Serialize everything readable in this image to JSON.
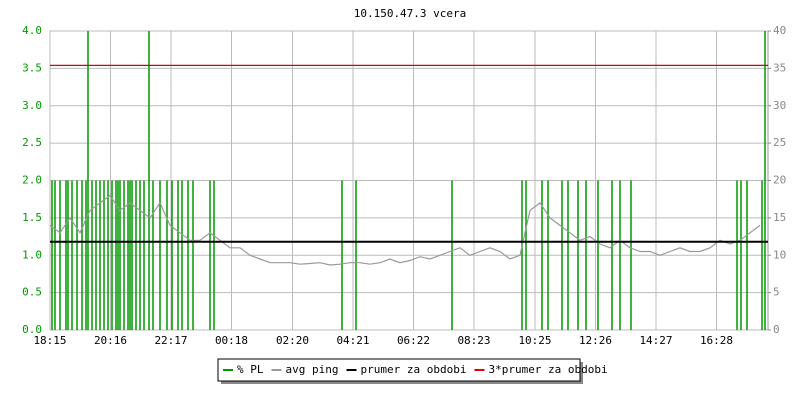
{
  "chart_data": {
    "type": "line",
    "title": "10.150.47.3 vcera",
    "xlim": [
      0,
      1436
    ],
    "xticks": [
      {
        "value": 0,
        "label": "18:15"
      },
      {
        "value": 121,
        "label": "20:16"
      },
      {
        "value": 242,
        "label": "22:17"
      },
      {
        "value": 363,
        "label": "00:18"
      },
      {
        "value": 485,
        "label": "02:20"
      },
      {
        "value": 606,
        "label": "04:21"
      },
      {
        "value": 727,
        "label": "06:22"
      },
      {
        "value": 848,
        "label": "08:23"
      },
      {
        "value": 970,
        "label": "10:25"
      },
      {
        "value": 1091,
        "label": "12:26"
      },
      {
        "value": 1212,
        "label": "14:27"
      },
      {
        "value": 1333,
        "label": "16:28"
      }
    ],
    "ylim": [
      0,
      4
    ],
    "yticks": [
      {
        "value": 0,
        "label": "0.0"
      },
      {
        "value": 0.5,
        "label": "0.5"
      },
      {
        "value": 1,
        "label": "1.0"
      },
      {
        "value": 1.5,
        "label": "1.5"
      },
      {
        "value": 2,
        "label": "2.0"
      },
      {
        "value": 2.5,
        "label": "2.5"
      },
      {
        "value": 3,
        "label": "3.0"
      },
      {
        "value": 3.5,
        "label": "3.5"
      },
      {
        "value": 4,
        "label": "4.0"
      }
    ],
    "y2lim": [
      0,
      40
    ],
    "y2ticks": [
      0,
      5,
      10,
      15,
      20,
      25,
      30,
      35,
      40
    ],
    "grid": true,
    "series": [
      {
        "name": "% PL",
        "color": "#009900",
        "style": "spikes",
        "x": [
          4,
          10,
          20,
          32,
          36,
          44,
          54,
          64,
          72,
          76,
          84,
          92,
          100,
          108,
          116,
          124,
          132,
          136,
          140,
          148,
          156,
          160,
          164,
          172,
          180,
          188,
          198,
          206,
          220,
          234,
          244,
          256,
          264,
          276,
          286,
          320,
          328,
          584,
          612,
          804,
          944,
          952,
          984,
          996,
          1024,
          1036,
          1056,
          1072,
          1096,
          1124,
          1140,
          1162,
          1374,
          1382,
          1394,
          1424,
          1430
        ],
        "values": [
          2,
          2,
          2,
          2,
          2,
          2,
          2,
          2,
          2,
          4,
          2,
          2,
          2,
          2,
          2,
          2,
          2,
          2,
          2,
          2,
          2,
          2,
          2,
          2,
          2,
          2,
          4,
          2,
          2,
          2,
          2,
          2,
          2,
          2,
          2,
          2,
          2,
          2,
          2,
          2,
          2,
          2,
          2,
          2,
          2,
          2,
          2,
          2,
          2,
          2,
          2,
          2,
          2,
          2,
          2,
          2,
          4
        ]
      },
      {
        "name": "avg ping",
        "color": "#999999",
        "axis": "y2",
        "x": [
          0,
          20,
          40,
          60,
          80,
          100,
          120,
          140,
          160,
          180,
          200,
          220,
          240,
          260,
          280,
          300,
          320,
          340,
          360,
          380,
          400,
          420,
          440,
          460,
          480,
          500,
          520,
          540,
          560,
          580,
          600,
          620,
          640,
          660,
          680,
          700,
          720,
          740,
          760,
          780,
          800,
          820,
          840,
          860,
          880,
          900,
          920,
          940,
          960,
          980,
          1000,
          1020,
          1040,
          1060,
          1080,
          1100,
          1120,
          1140,
          1160,
          1180,
          1200,
          1220,
          1240,
          1260,
          1280,
          1300,
          1320,
          1340,
          1360,
          1380,
          1400,
          1420
        ],
        "values": [
          14,
          13,
          15,
          13,
          16,
          17,
          18,
          16,
          17,
          16,
          15,
          17,
          14,
          13,
          12,
          12,
          13,
          12,
          11,
          11,
          10,
          9.5,
          9,
          9,
          9,
          8.8,
          8.9,
          9,
          8.7,
          8.8,
          9,
          9,
          8.8,
          9,
          9.5,
          9,
          9.3,
          9.8,
          9.5,
          10,
          10.5,
          11,
          10,
          10.5,
          11,
          10.5,
          9.5,
          10,
          16,
          17,
          15,
          14,
          13,
          12,
          12.5,
          11.5,
          11,
          12,
          11,
          10.5,
          10.5,
          10,
          10.5,
          11,
          10.5,
          10.5,
          11,
          12,
          11.5,
          12,
          13,
          14
        ]
      }
    ],
    "reference_lines": [
      {
        "name": "prumer za obdobi",
        "color": "#000000",
        "axis": "y2",
        "value": 11.8
      },
      {
        "name": "3*prumer za obdobi",
        "color": "#dd0000",
        "axis": "y2",
        "value": 35.4
      }
    ]
  }
}
